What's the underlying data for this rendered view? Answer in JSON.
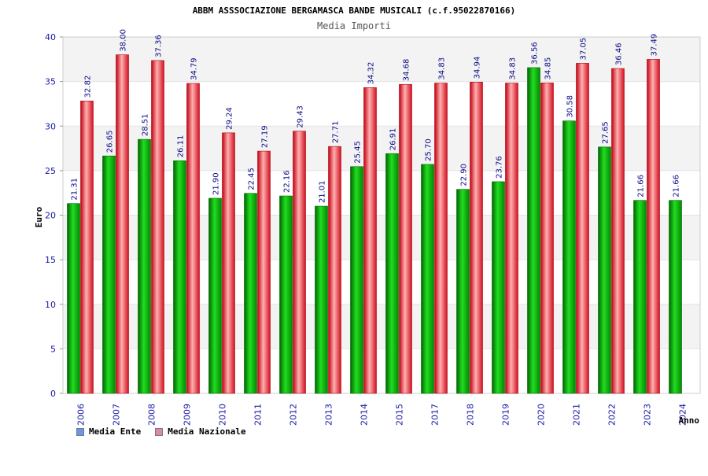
{
  "chart_data": {
    "type": "bar",
    "title": "ABBM ASSSOCIAZIONE BERGAMASCA BANDE MUSICALI (c.f.95022870166)",
    "subtitle": "Media Importi",
    "xlabel": "Anno",
    "ylabel": "Euro",
    "ylim": [
      0,
      40
    ],
    "yticks": [
      0,
      5,
      10,
      15,
      20,
      25,
      30,
      35,
      40
    ],
    "grid": true,
    "legend_position": "bottom-left",
    "categories": [
      "2006",
      "2007",
      "2008",
      "2009",
      "2010",
      "2011",
      "2012",
      "2013",
      "2014",
      "2015",
      "2017",
      "2018",
      "2019",
      "2020",
      "2021",
      "2022",
      "2023",
      "2024"
    ],
    "series": [
      {
        "name": "Media Ente",
        "color": "#10b010",
        "swatch_color": "#6699ee",
        "values": [
          21.31,
          26.65,
          28.51,
          26.11,
          21.9,
          22.45,
          22.16,
          21.01,
          25.45,
          26.91,
          25.7,
          22.9,
          23.76,
          36.56,
          30.58,
          27.65,
          21.66,
          21.66
        ],
        "labels": [
          "21.31",
          "26.65",
          "28.51",
          "26.11",
          "21.90",
          "22.45",
          "22.16",
          "21.01",
          "25.45",
          "26.91",
          "25.70",
          "22.90",
          "23.76",
          "36.56",
          "30.58",
          "27.65",
          "21.66",
          "21.66"
        ]
      },
      {
        "name": "Media Nazionale",
        "color": "#e82030",
        "swatch_color": "#dd88aa",
        "values": [
          32.82,
          38.0,
          37.36,
          34.79,
          29.24,
          27.19,
          29.43,
          27.71,
          34.32,
          34.68,
          34.83,
          34.94,
          34.83,
          34.85,
          37.05,
          36.46,
          37.49,
          null
        ],
        "labels": [
          "32.82",
          "38.00",
          "37.36",
          "34.79",
          "29.24",
          "27.19",
          "29.43",
          "27.71",
          "34.32",
          "34.68",
          "34.83",
          "34.94",
          "34.83",
          "34.85",
          "37.05",
          "36.46",
          "37.49",
          ""
        ]
      }
    ]
  }
}
